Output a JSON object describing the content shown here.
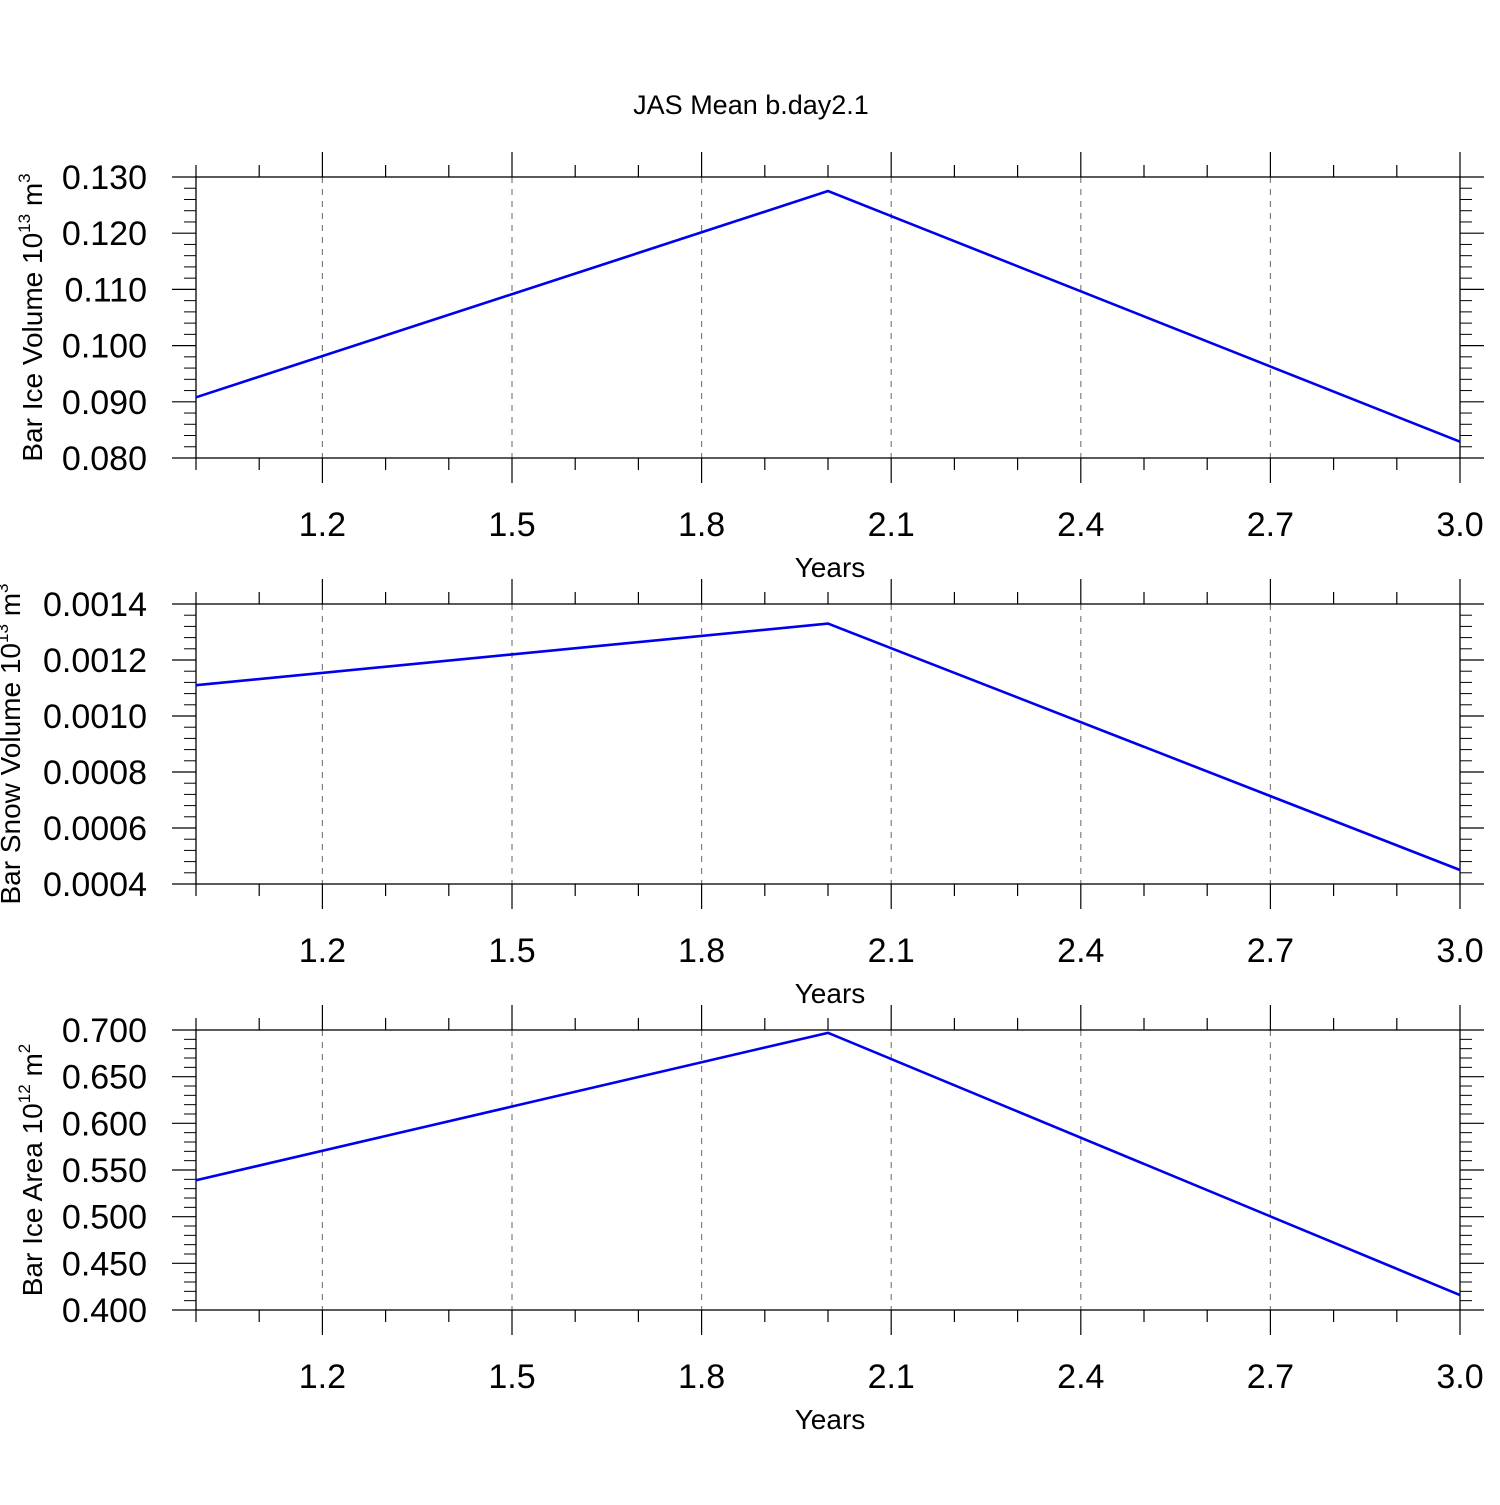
{
  "title": "JAS Mean b.day2.1",
  "colors": {
    "series": "#0000ee",
    "axis": "#000000",
    "grid": "#7f7f7f"
  },
  "chart_data": [
    {
      "type": "line",
      "ylabel": {
        "text": "Bar Ice Volume 10",
        "exp": "13",
        "unit": " m",
        "unit_exp": "3"
      },
      "xlabel": "Years",
      "xlim": [
        1.0,
        3.0
      ],
      "ylim": [
        0.08,
        0.13
      ],
      "x_ticks": [
        1.2,
        1.5,
        1.8,
        2.1,
        2.4,
        2.7,
        3.0
      ],
      "x_tick_labels": [
        "1.2",
        "1.5",
        "1.8",
        "2.1",
        "2.4",
        "2.7",
        "3.0"
      ],
      "y_ticks": [
        0.08,
        0.09,
        0.1,
        0.11,
        0.12,
        0.13
      ],
      "y_tick_labels": [
        "0.080",
        "0.090",
        "0.100",
        "0.110",
        "0.120",
        "0.130"
      ],
      "grid": "x dashed",
      "series": [
        {
          "x": [
            1,
            2,
            3
          ],
          "y": [
            0.0908,
            0.1275,
            0.0829
          ]
        }
      ]
    },
    {
      "type": "line",
      "ylabel": {
        "text": "Bar Snow Volume 10",
        "exp": "13",
        "unit": " m",
        "unit_exp": "3"
      },
      "xlabel": "Years",
      "xlim": [
        1.0,
        3.0
      ],
      "ylim": [
        0.0004,
        0.0014
      ],
      "x_ticks": [
        1.2,
        1.5,
        1.8,
        2.1,
        2.4,
        2.7,
        3.0
      ],
      "x_tick_labels": [
        "1.2",
        "1.5",
        "1.8",
        "2.1",
        "2.4",
        "2.7",
        "3.0"
      ],
      "y_ticks": [
        0.0004,
        0.0006,
        0.0008,
        0.001,
        0.0012,
        0.0014
      ],
      "y_tick_labels": [
        "0.0004",
        "0.0006",
        "0.0008",
        "0.0010",
        "0.0012",
        "0.0014"
      ],
      "grid": "x dashed",
      "series": [
        {
          "x": [
            1,
            2,
            3
          ],
          "y": [
            0.00111,
            0.00133,
            0.00045
          ]
        }
      ]
    },
    {
      "type": "line",
      "ylabel": {
        "text": "Bar Ice Area 10",
        "exp": "12",
        "unit": " m",
        "unit_exp": "2"
      },
      "xlabel": "Years",
      "xlim": [
        1.0,
        3.0
      ],
      "ylim": [
        0.4,
        0.7
      ],
      "x_ticks": [
        1.2,
        1.5,
        1.8,
        2.1,
        2.4,
        2.7,
        3.0
      ],
      "x_tick_labels": [
        "1.2",
        "1.5",
        "1.8",
        "2.1",
        "2.4",
        "2.7",
        "3.0"
      ],
      "y_ticks": [
        0.4,
        0.45,
        0.5,
        0.55,
        0.6,
        0.65,
        0.7
      ],
      "y_tick_labels": [
        "0.400",
        "0.450",
        "0.500",
        "0.550",
        "0.600",
        "0.650",
        "0.700"
      ],
      "grid": "x dashed",
      "series": [
        {
          "x": [
            1,
            2,
            3
          ],
          "y": [
            0.539,
            0.697,
            0.416
          ]
        }
      ]
    }
  ]
}
